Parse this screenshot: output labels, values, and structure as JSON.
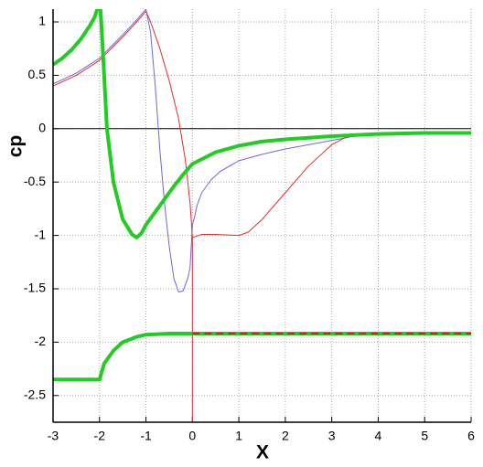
{
  "chart_data": {
    "type": "line",
    "x_label": "X",
    "y_label": "cp",
    "xlim": [
      -3,
      6
    ],
    "ylim": [
      -2.75,
      1.12
    ],
    "xticks": [
      -3,
      -2,
      -1,
      0,
      1,
      2,
      3,
      4,
      5,
      6
    ],
    "yticks": [
      -2.5,
      -2,
      -1.5,
      -1,
      -0.5,
      0,
      0.5,
      1
    ],
    "grid": true,
    "zero_line": true,
    "series": [
      {
        "color": "#6a6adf",
        "width": 1,
        "dash": false,
        "x": [
          -3,
          -2.5,
          -2,
          -1.5,
          -1.2,
          -1,
          -0.9,
          -0.8,
          -0.7,
          -0.6,
          -0.5,
          -0.4,
          -0.3,
          -0.2,
          -0.1,
          -0.05,
          0,
          0.05,
          0.1,
          0.2,
          0.4,
          0.6,
          1,
          1.5,
          2,
          2.5,
          3,
          3.5,
          4,
          5,
          6
        ],
        "values": [
          0.42,
          0.52,
          0.66,
          0.88,
          1.02,
          1.12,
          0.9,
          0.4,
          -0.2,
          -0.7,
          -1.1,
          -1.4,
          -1.53,
          -1.52,
          -1.4,
          -1.3,
          -0.9,
          -0.82,
          -0.72,
          -0.6,
          -0.48,
          -0.4,
          -0.3,
          -0.24,
          -0.19,
          -0.15,
          -0.11,
          -0.07,
          -0.05,
          -0.04,
          -0.04
        ]
      },
      {
        "color": "#e03030",
        "width": 1,
        "dash": false,
        "x": [
          -3,
          -2.5,
          -2,
          -1.5,
          -1.2,
          -1,
          -0.9,
          -0.7,
          -0.5,
          -0.3,
          -0.15,
          -0.05,
          0,
          0.2,
          0.5,
          1,
          1.2,
          1.5,
          2,
          2.5,
          3,
          3.3,
          3.6,
          4,
          5,
          6
        ],
        "values": [
          0.4,
          0.5,
          0.64,
          0.86,
          1.0,
          1.1,
          1.0,
          0.75,
          0.45,
          0.1,
          -0.3,
          -0.7,
          -1.02,
          -0.99,
          -0.99,
          -1.0,
          -0.97,
          -0.85,
          -0.6,
          -0.35,
          -0.15,
          -0.08,
          -0.05,
          -0.04,
          -0.04,
          -0.04
        ]
      },
      {
        "color": "#e03030",
        "width": 1,
        "dash": false,
        "x": [
          0,
          0
        ],
        "values": [
          -1.02,
          -2.75
        ]
      },
      {
        "color": "#22cc22",
        "width": 4,
        "dash": false,
        "x": [
          -3,
          -2.8,
          -2.6,
          -2.4,
          -2.2,
          -2.1,
          -2.05,
          -1.98,
          -1.95,
          -1.9,
          -1.84,
          -1.7,
          -1.5,
          -1.3,
          -1.2,
          -1.1,
          -1,
          -0.8,
          -0.6,
          -0.4,
          -0.2,
          0,
          0.5,
          1,
          1.5,
          2,
          3,
          4,
          5,
          6
        ],
        "values": [
          0.6,
          0.66,
          0.74,
          0.84,
          0.97,
          1.05,
          1.12,
          1.12,
          0.9,
          0.5,
          0,
          -0.5,
          -0.85,
          -0.99,
          -1.02,
          -0.98,
          -0.9,
          -0.78,
          -0.66,
          -0.54,
          -0.43,
          -0.33,
          -0.22,
          -0.16,
          -0.12,
          -0.1,
          -0.07,
          -0.05,
          -0.04,
          -0.04
        ]
      },
      {
        "color": "#22cc22",
        "width": 4,
        "dash": false,
        "x": [
          -3,
          -2,
          -1.9,
          -1.7,
          -1.5,
          -1.2,
          -1,
          -0.5,
          0,
          6
        ],
        "values": [
          -2.35,
          -2.35,
          -2.2,
          -2.08,
          -2.0,
          -1.95,
          -1.93,
          -1.92,
          -1.92,
          -1.92
        ]
      },
      {
        "color": "#cc2222",
        "width": 2,
        "dash": true,
        "x": [
          0,
          6
        ],
        "values": [
          -1.92,
          -1.92
        ]
      }
    ]
  }
}
